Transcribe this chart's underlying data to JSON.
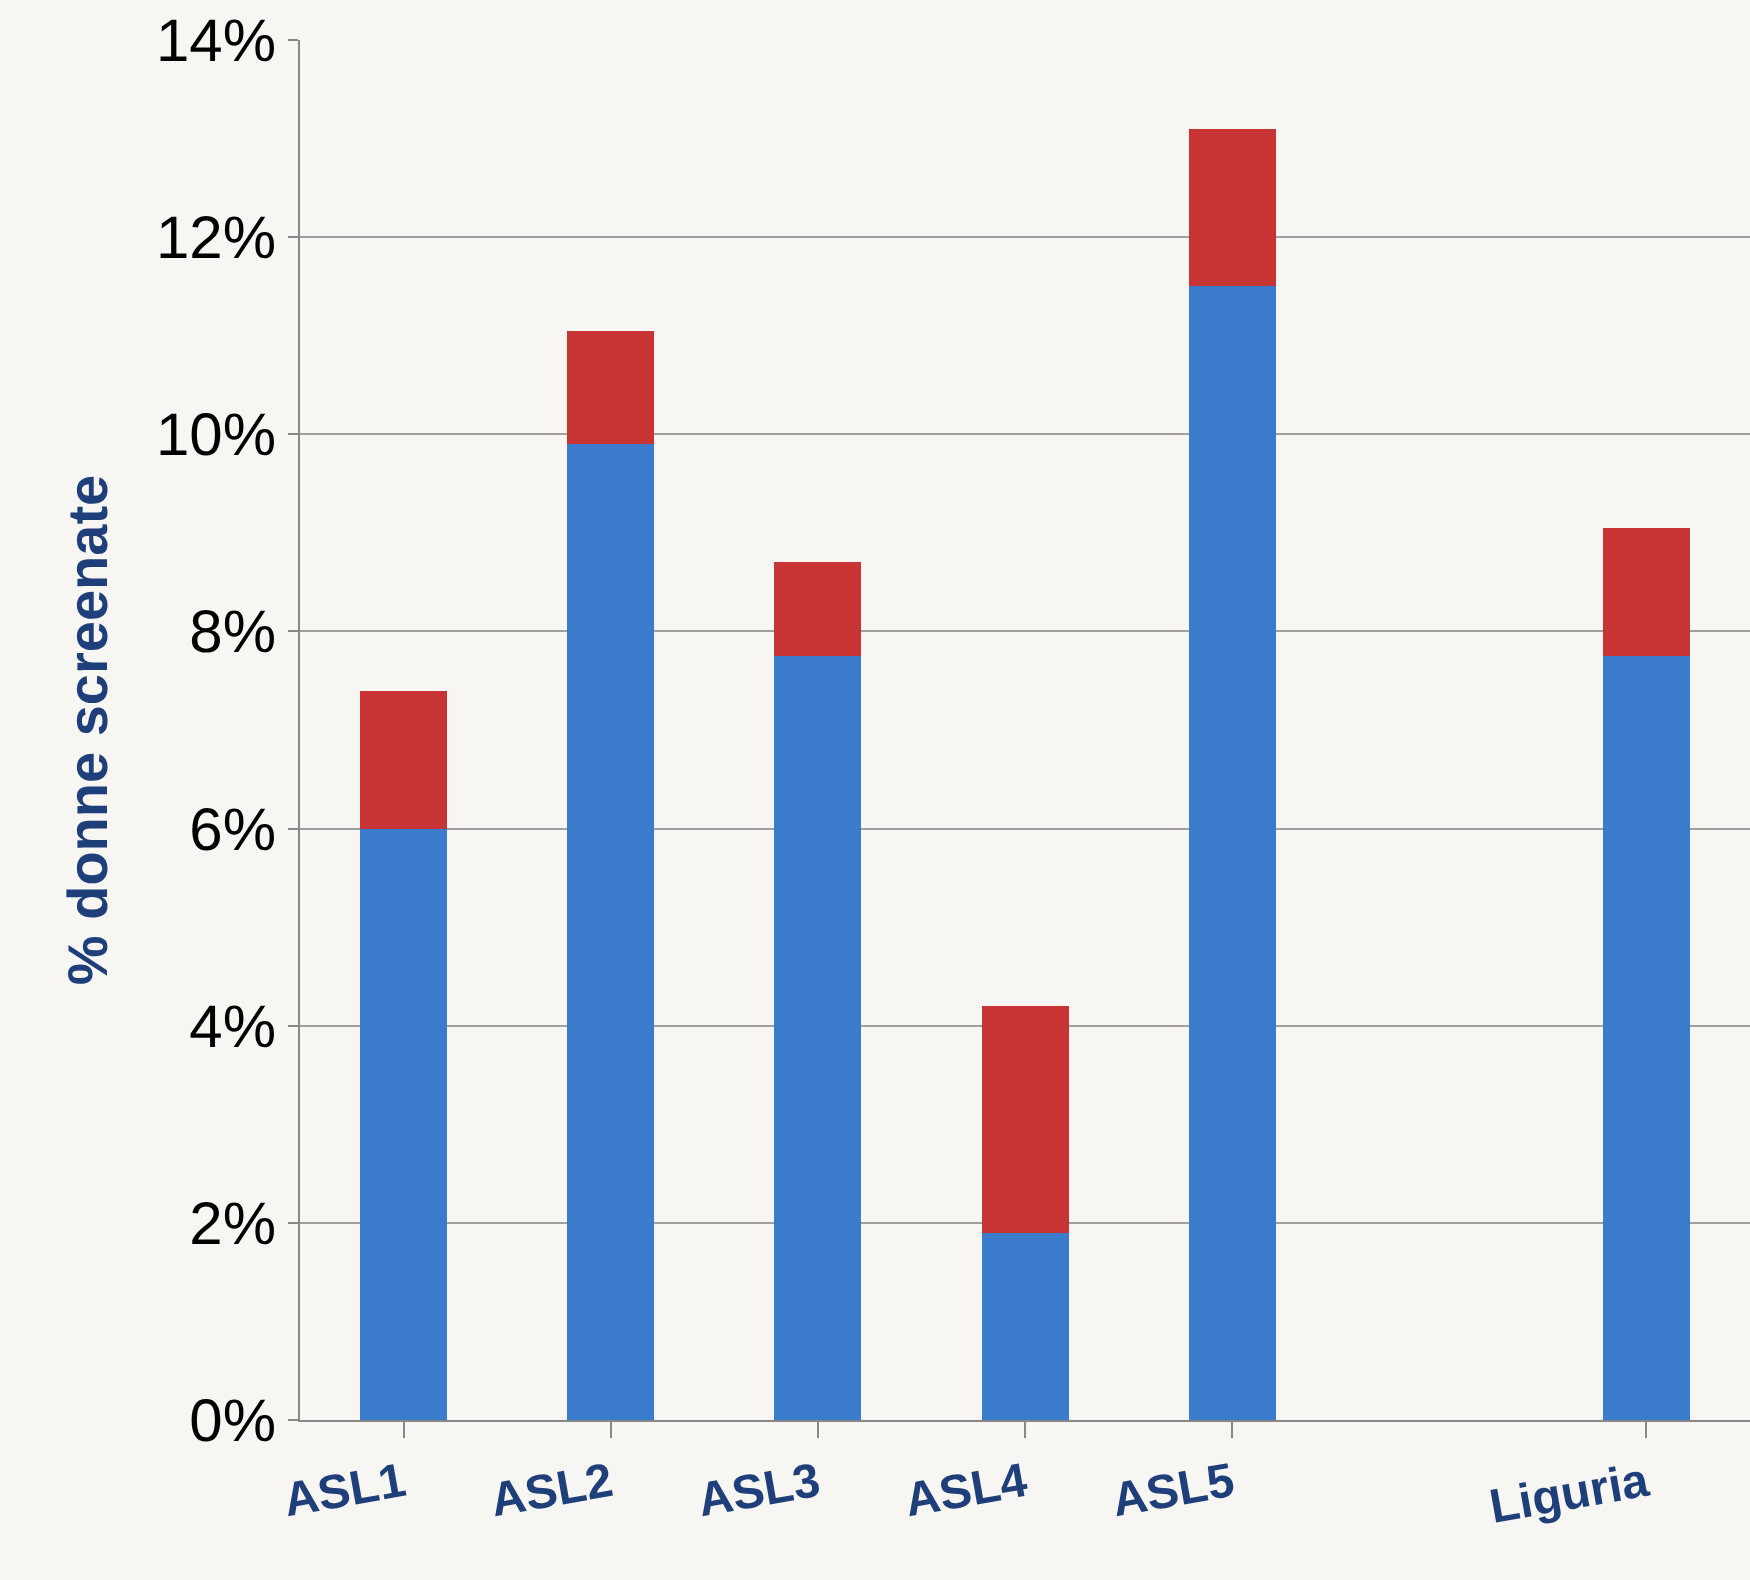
{
  "chart_data": {
    "type": "bar",
    "stacked": true,
    "ylabel": "% donne screenate",
    "categories": [
      "ASL1",
      "ASL2",
      "ASL3",
      "ASL4",
      "ASL5",
      null,
      "Liguria"
    ],
    "series": [
      {
        "color": "#3b7bcc",
        "values": [
          6.0,
          9.9,
          7.75,
          1.9,
          11.5,
          null,
          7.75
        ]
      },
      {
        "color": "#c83434",
        "values": [
          1.4,
          1.15,
          0.95,
          2.3,
          1.6,
          null,
          1.3
        ]
      }
    ],
    "ylim": [
      0,
      14
    ],
    "yticks": [
      {
        "value": 0,
        "label": "0%"
      },
      {
        "value": 2,
        "label": "2%"
      },
      {
        "value": 4,
        "label": "4%"
      },
      {
        "value": 6,
        "label": "6%"
      },
      {
        "value": 8,
        "label": "8%"
      },
      {
        "value": 10,
        "label": "10%"
      },
      {
        "value": 12,
        "label": "12%"
      },
      {
        "value": 14,
        "label": "14%"
      }
    ],
    "grid": "y"
  }
}
